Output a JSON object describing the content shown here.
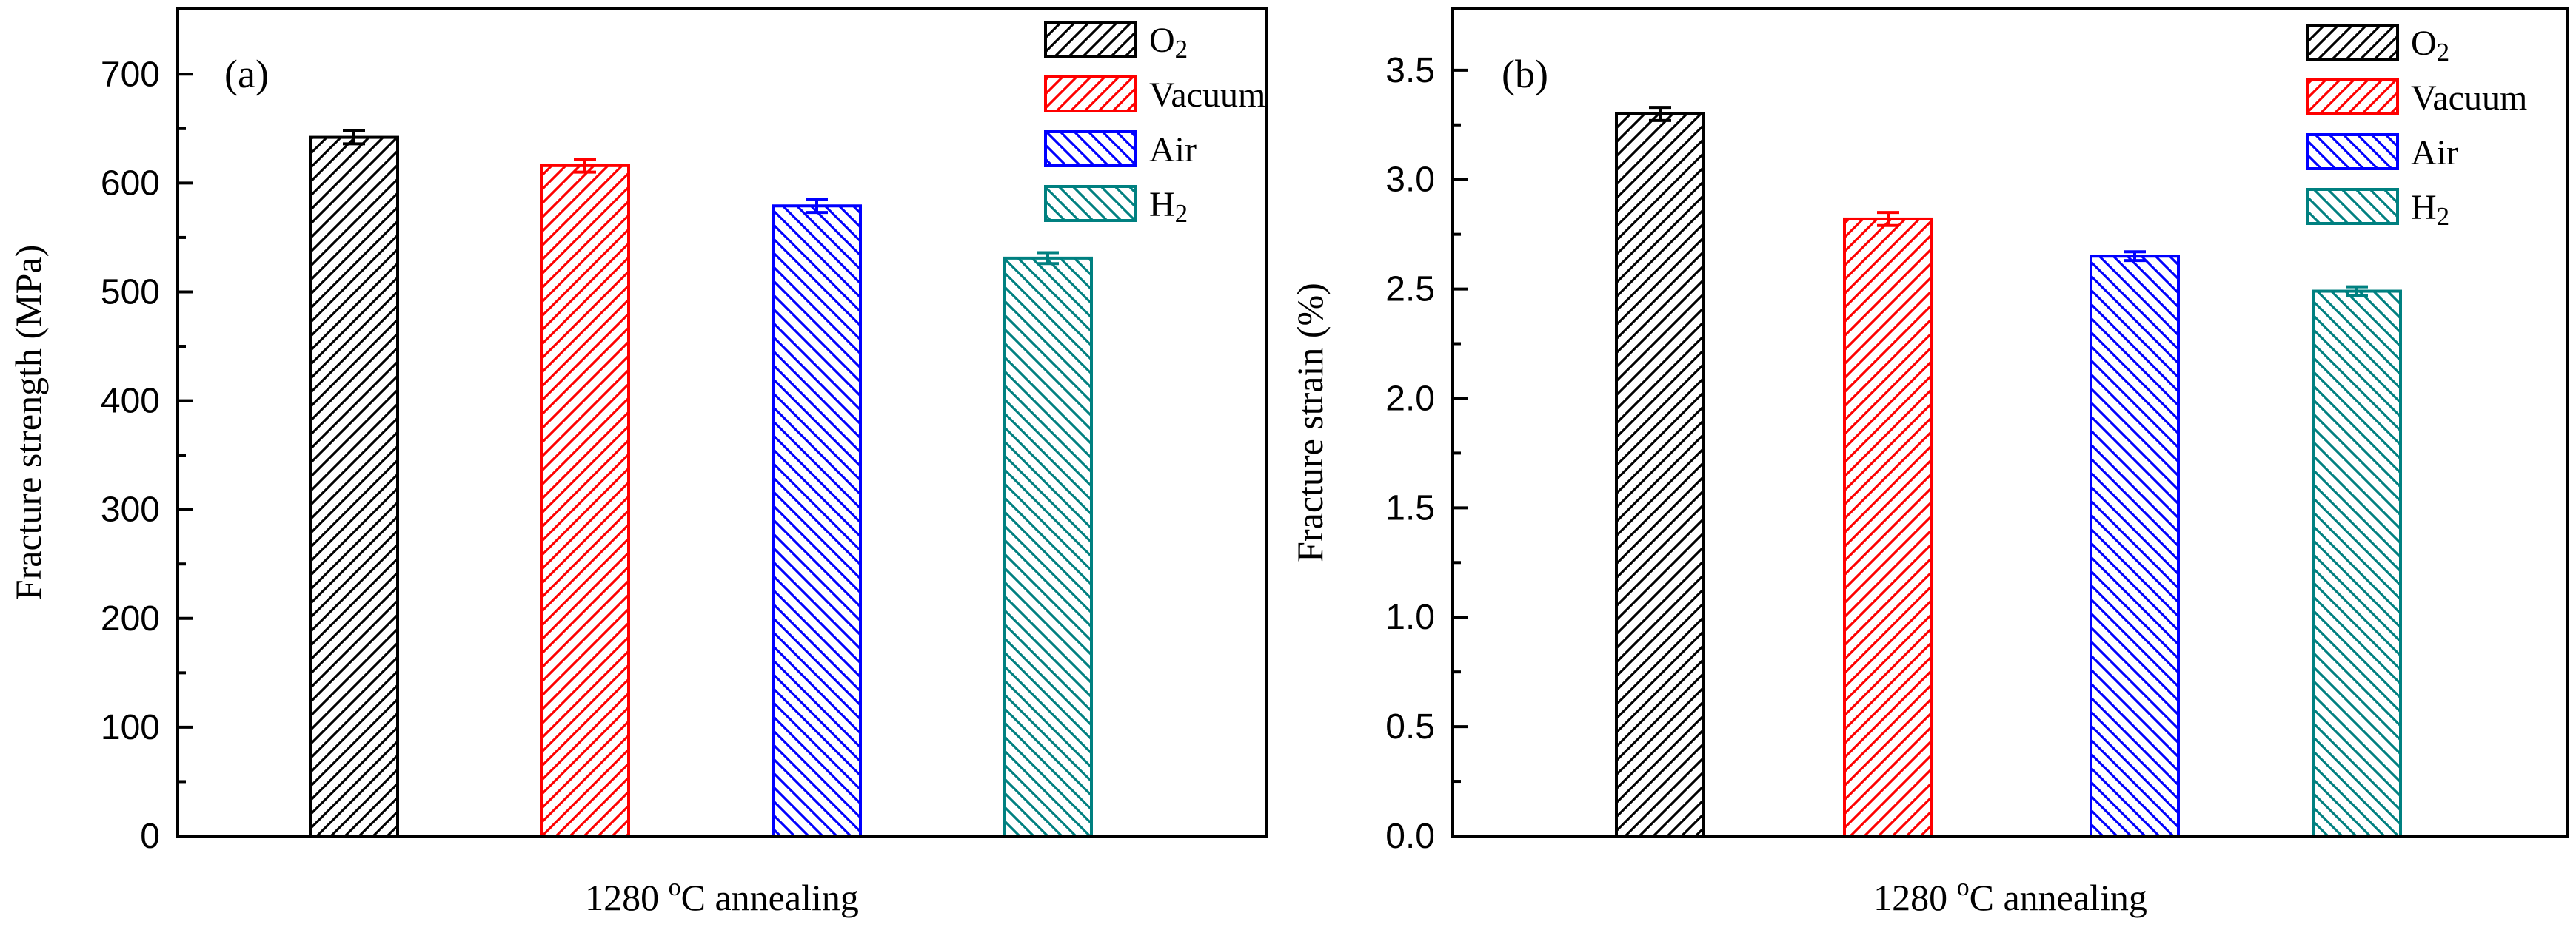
{
  "chart_data": [
    {
      "type": "bar",
      "panel_label": "(a)",
      "title": "",
      "xlabel_prefix": "1280 ",
      "xlabel_degree": "o",
      "xlabel_suffix": "C annealing",
      "ylabel": "Fracture strength (MPa)",
      "ylim": [
        0,
        760
      ],
      "yticks": [
        0,
        100,
        200,
        300,
        400,
        500,
        600,
        700
      ],
      "ytick_labels": [
        "0",
        "100",
        "200",
        "300",
        "400",
        "500",
        "600",
        "700"
      ],
      "grid": false,
      "legend_position": "top-right",
      "categories": [
        "O2",
        "Vacuum",
        "Air",
        "H2"
      ],
      "series": [
        {
          "name": "O2",
          "value": 642,
          "error": 6,
          "color": "#000000",
          "hatch": "forward"
        },
        {
          "name": "Vacuum",
          "value": 616,
          "error": 6,
          "color": "#ff0000",
          "hatch": "forward"
        },
        {
          "name": "Air",
          "value": 579,
          "error": 6,
          "color": "#0000ff",
          "hatch": "backward"
        },
        {
          "name": "H2",
          "value": 531,
          "error": 5,
          "color": "#008080",
          "hatch": "backward"
        }
      ]
    },
    {
      "type": "bar",
      "panel_label": "(b)",
      "title": "",
      "xlabel_prefix": "1280 ",
      "xlabel_degree": "o",
      "xlabel_suffix": "C annealing",
      "ylabel": "Fracture strain (%)",
      "ylim": [
        0,
        3.78
      ],
      "yticks": [
        0,
        0.5,
        1,
        1.5,
        2,
        2.5,
        3,
        3.5
      ],
      "ytick_labels": [
        "0.0",
        "0.5",
        "1.0",
        "1.5",
        "2.0",
        "2.5",
        "3.0",
        "3.5"
      ],
      "grid": false,
      "legend_position": "top-right",
      "categories": [
        "O2",
        "Vacuum",
        "Air",
        "H2"
      ],
      "series": [
        {
          "name": "O2",
          "value": 3.3,
          "error": 0.03,
          "color": "#000000",
          "hatch": "forward"
        },
        {
          "name": "Vacuum",
          "value": 2.82,
          "error": 0.03,
          "color": "#ff0000",
          "hatch": "forward"
        },
        {
          "name": "Air",
          "value": 2.65,
          "error": 0.02,
          "color": "#0000ff",
          "hatch": "backward"
        },
        {
          "name": "H2",
          "value": 2.49,
          "error": 0.02,
          "color": "#008080",
          "hatch": "backward"
        }
      ]
    }
  ]
}
